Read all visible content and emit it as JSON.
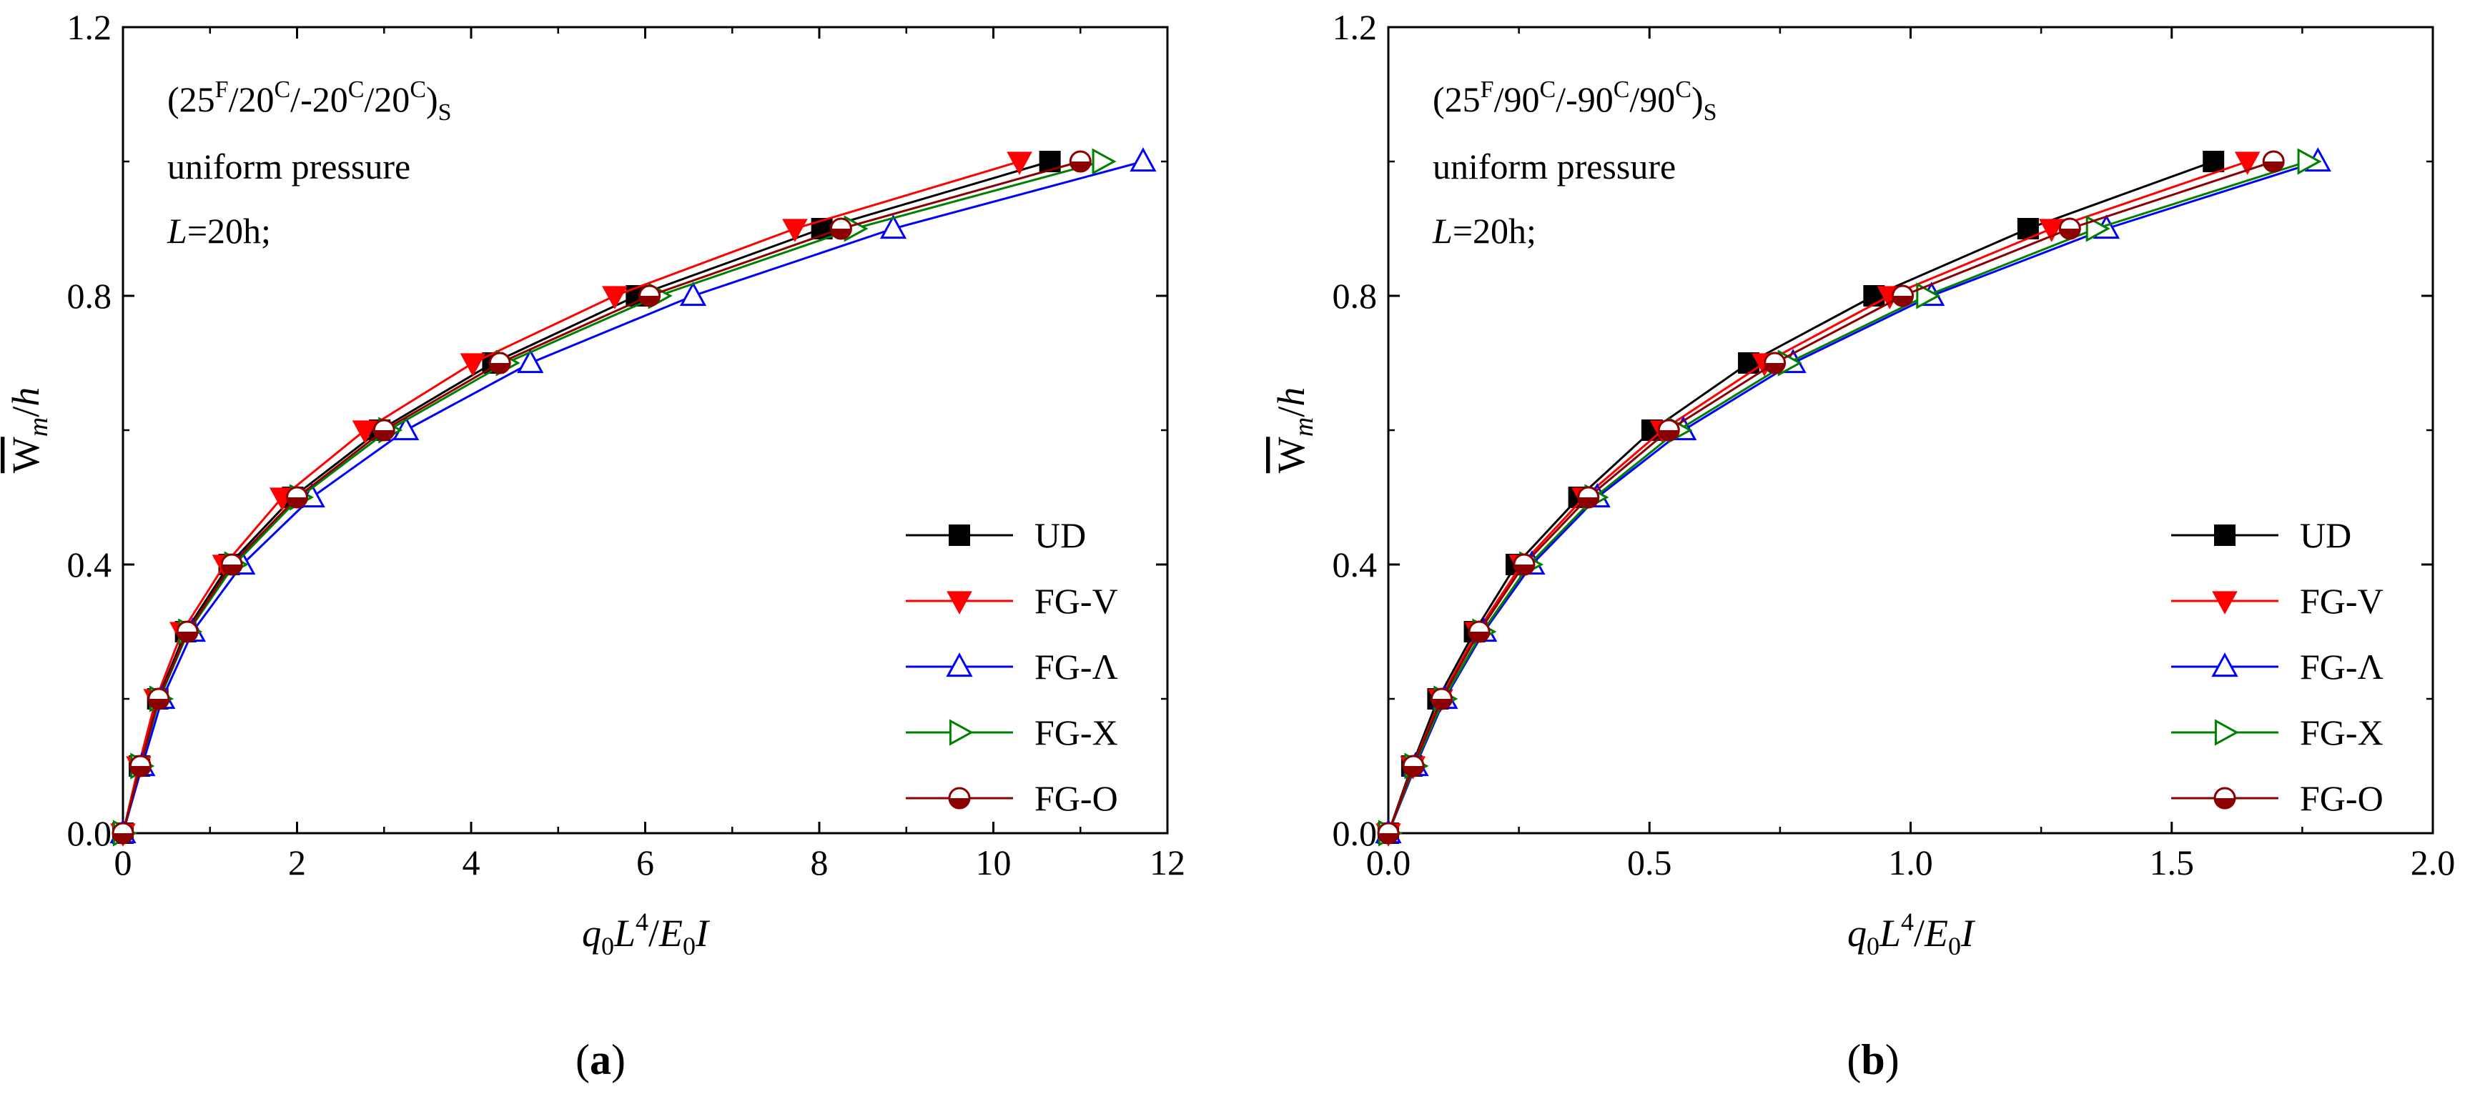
{
  "figure": {
    "panels": [
      {
        "label": "(a)",
        "annotations": [
          "uniform pressure",
          "L=20h;"
        ]
      },
      {
        "label": "(b)",
        "annotations": [
          "uniform pressure",
          "L=20h;"
        ]
      }
    ]
  },
  "chart_data": [
    {
      "type": "line",
      "panel": "(a)",
      "title": "(25F/20C/-20C/20C)S",
      "laminate": {
        "a": "25",
        "b": "20",
        "c": "-20",
        "d": "20",
        "sub": "S",
        "sup_first": "F",
        "sup_rest": "C"
      },
      "annotations": [
        "uniform pressure",
        "L=20h;"
      ],
      "xlabel": "q0L4/E0I",
      "ylabel": "Wm/h",
      "xlim": [
        0,
        12
      ],
      "ylim": [
        0,
        1.2
      ],
      "xticks": [
        0,
        2,
        4,
        6,
        8,
        10,
        12
      ],
      "xtick_labels": [
        "0",
        "2",
        "4",
        "6",
        "8",
        "10",
        "12"
      ],
      "yticks": [
        0,
        0.4,
        0.8,
        1.2
      ],
      "ytick_labels": [
        "0.0",
        "0.4",
        "0.8",
        "1.2"
      ],
      "legend_position": "bottom-right",
      "y": [
        0,
        0.1,
        0.2,
        0.3,
        0.4,
        0.5,
        0.6,
        0.7,
        0.8,
        0.9,
        1.0
      ],
      "series": [
        {
          "name": "UD",
          "color": "#000000",
          "marker": "square",
          "x": [
            0,
            0.19,
            0.4,
            0.72,
            1.22,
            1.95,
            2.95,
            4.25,
            5.9,
            8.03,
            10.65
          ]
        },
        {
          "name": "FG-V",
          "color": "#ff0000",
          "marker": "triangle-down",
          "x": [
            0,
            0.18,
            0.38,
            0.68,
            1.17,
            1.83,
            2.78,
            4.02,
            5.65,
            7.72,
            10.3
          ]
        },
        {
          "name": "FG-Λ",
          "color": "#0000ff",
          "marker": "triangle-up",
          "x": [
            0,
            0.22,
            0.45,
            0.8,
            1.37,
            2.17,
            3.25,
            4.68,
            6.55,
            8.85,
            11.72
          ]
        },
        {
          "name": "FG-X",
          "color": "#008000",
          "marker": "triangle-right",
          "x": [
            0,
            0.2,
            0.42,
            0.75,
            1.28,
            2.03,
            3.05,
            4.4,
            6.15,
            8.4,
            11.25
          ]
        },
        {
          "name": "FG-O",
          "color": "#8b0000",
          "marker": "circle-half",
          "x": [
            0,
            0.2,
            0.41,
            0.74,
            1.25,
            2.0,
            3.0,
            4.33,
            6.05,
            8.25,
            11.0
          ]
        }
      ]
    },
    {
      "type": "line",
      "panel": "(b)",
      "title": "(25F/90C/-90C/90C)S",
      "laminate": {
        "a": "25",
        "b": "90",
        "c": "-90",
        "d": "90",
        "sub": "S",
        "sup_first": "F",
        "sup_rest": "C"
      },
      "annotations": [
        "uniform pressure",
        "L=20h;"
      ],
      "xlabel": "q0L4/E0I",
      "ylabel": "Wm/h",
      "xlim": [
        0,
        2.0
      ],
      "ylim": [
        0,
        1.2
      ],
      "xticks": [
        0,
        0.5,
        1.0,
        1.5,
        2.0
      ],
      "xtick_labels": [
        "0.0",
        "0.5",
        "1.0",
        "1.5",
        "2.0"
      ],
      "yticks": [
        0,
        0.4,
        0.8,
        1.2
      ],
      "ytick_labels": [
        "0.0",
        "0.4",
        "0.8",
        "1.2"
      ],
      "legend_position": "bottom-right",
      "y": [
        0,
        0.1,
        0.2,
        0.3,
        0.4,
        0.5,
        0.6,
        0.7,
        0.8,
        0.9,
        1.0
      ],
      "series": [
        {
          "name": "UD",
          "color": "#000000",
          "marker": "square",
          "x": [
            0,
            0.045,
            0.095,
            0.165,
            0.245,
            0.365,
            0.505,
            0.69,
            0.93,
            1.225,
            1.58
          ]
        },
        {
          "name": "FG-V",
          "color": "#ff0000",
          "marker": "triangle-down",
          "x": [
            0,
            0.047,
            0.1,
            0.17,
            0.255,
            0.375,
            0.525,
            0.72,
            0.96,
            1.27,
            1.645
          ]
        },
        {
          "name": "FG-Λ",
          "color": "#0000ff",
          "marker": "triangle-up",
          "x": [
            0,
            0.052,
            0.108,
            0.183,
            0.275,
            0.4,
            0.565,
            0.775,
            1.04,
            1.375,
            1.78
          ]
        },
        {
          "name": "FG-X",
          "color": "#008000",
          "marker": "triangle-right",
          "x": [
            0,
            0.05,
            0.106,
            0.18,
            0.27,
            0.395,
            0.555,
            0.765,
            1.03,
            1.355,
            1.76
          ]
        },
        {
          "name": "FG-O",
          "color": "#8b0000",
          "marker": "circle-half",
          "x": [
            0,
            0.048,
            0.102,
            0.174,
            0.26,
            0.383,
            0.537,
            0.74,
            0.985,
            1.305,
            1.695
          ]
        }
      ]
    }
  ]
}
